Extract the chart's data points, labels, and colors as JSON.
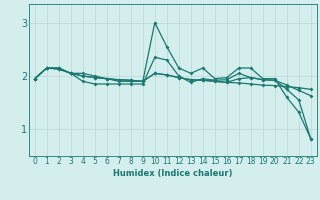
{
  "title": "",
  "xlabel": "Humidex (Indice chaleur)",
  "bg_color": "#d4eeed",
  "grid_color": "#b8d8d5",
  "line_color": "#1a7870",
  "xlim": [
    -0.5,
    23.5
  ],
  "ylim": [
    0.5,
    3.35
  ],
  "x_ticks": [
    0,
    1,
    2,
    3,
    4,
    5,
    6,
    7,
    8,
    9,
    10,
    11,
    12,
    13,
    14,
    15,
    16,
    17,
    18,
    19,
    20,
    21,
    22,
    23
  ],
  "y_ticks": [
    1,
    2,
    3
  ],
  "line1_x": [
    0,
    1,
    2,
    3,
    4,
    5,
    6,
    7,
    8,
    9,
    10,
    11,
    12,
    13,
    14,
    15,
    16,
    17,
    18,
    19,
    20,
    21,
    22,
    23
  ],
  "line1_y": [
    1.95,
    2.15,
    2.15,
    2.05,
    2.05,
    2.0,
    1.95,
    1.9,
    1.9,
    1.9,
    3.0,
    2.55,
    2.15,
    2.05,
    2.15,
    1.95,
    1.97,
    2.15,
    2.15,
    1.95,
    1.95,
    1.6,
    1.32,
    0.82
  ],
  "line2_x": [
    0,
    1,
    2,
    3,
    4,
    5,
    6,
    7,
    8,
    9,
    10,
    11,
    12,
    13,
    14,
    15,
    16,
    17,
    18,
    19,
    20,
    21,
    22,
    23
  ],
  "line2_y": [
    1.95,
    2.15,
    2.15,
    2.05,
    1.9,
    1.85,
    1.85,
    1.85,
    1.85,
    1.85,
    2.35,
    2.3,
    2.0,
    1.88,
    1.95,
    1.92,
    1.93,
    2.05,
    1.97,
    1.93,
    1.92,
    1.75,
    1.55,
    0.82
  ],
  "line3_x": [
    0,
    1,
    2,
    3,
    4,
    5,
    6,
    7,
    8,
    9,
    10,
    11,
    12,
    13,
    14,
    15,
    16,
    17,
    18,
    19,
    20,
    21,
    22,
    23
  ],
  "line3_y": [
    1.95,
    2.15,
    2.13,
    2.05,
    2.0,
    1.97,
    1.95,
    1.93,
    1.92,
    1.9,
    2.05,
    2.02,
    1.97,
    1.93,
    1.92,
    1.9,
    1.88,
    1.95,
    1.97,
    1.93,
    1.92,
    1.83,
    1.73,
    1.63
  ],
  "line4_x": [
    0,
    1,
    2,
    3,
    4,
    5,
    6,
    7,
    8,
    9,
    10,
    11,
    12,
    13,
    14,
    15,
    16,
    17,
    18,
    19,
    20,
    21,
    22,
    23
  ],
  "line4_y": [
    1.95,
    2.15,
    2.13,
    2.05,
    2.0,
    1.97,
    1.95,
    1.93,
    1.92,
    1.9,
    2.05,
    2.02,
    1.97,
    1.93,
    1.92,
    1.9,
    1.88,
    1.87,
    1.85,
    1.83,
    1.82,
    1.8,
    1.78,
    1.75
  ],
  "xlabel_fontsize": 6,
  "tick_fontsize": 5.5,
  "ytick_fontsize": 7,
  "linewidth": 0.9,
  "markersize": 2.0
}
